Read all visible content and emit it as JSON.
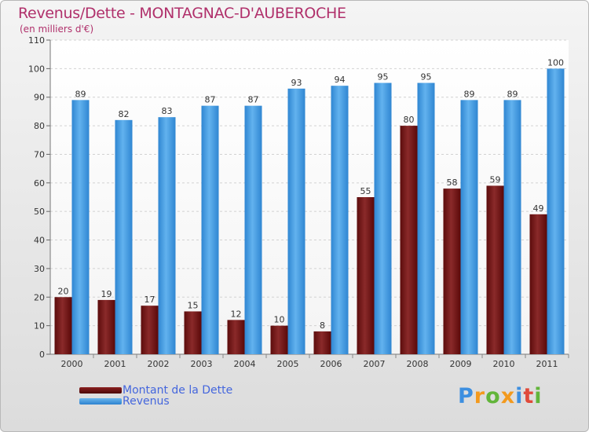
{
  "header": {
    "title": "Revenus/Dette - MONTAGNAC-D'AUBEROCHE",
    "subtitle": "(en milliers d'€)"
  },
  "chart_data": {
    "type": "bar",
    "title": "Revenus/Dette - MONTAGNAC-D'AUBEROCHE",
    "ylabel": "(en milliers d'€)",
    "xlabel": "",
    "ylim": [
      0,
      110
    ],
    "yticks": [
      0,
      10,
      20,
      30,
      40,
      50,
      60,
      70,
      80,
      90,
      100,
      110
    ],
    "grid": true,
    "legend_position": "bottom-left",
    "categories": [
      "2000",
      "2001",
      "2002",
      "2003",
      "2004",
      "2005",
      "2006",
      "2007",
      "2008",
      "2009",
      "2010",
      "2011"
    ],
    "series": [
      {
        "name": "Montant de la Dette",
        "color": "#7a1a1a",
        "values": [
          20,
          19,
          17,
          15,
          12,
          10,
          8,
          55,
          80,
          58,
          59,
          49
        ]
      },
      {
        "name": "Revenus",
        "color": "#3d96e0",
        "values": [
          89,
          82,
          83,
          87,
          87,
          93,
          94,
          95,
          95,
          89,
          89,
          100
        ]
      }
    ]
  },
  "legend": {
    "items": [
      {
        "label": "Montant de la Dette",
        "color": "#6b0d0d"
      },
      {
        "label": "Revenus",
        "color": "#3d96e0"
      }
    ]
  },
  "logo": {
    "letters": [
      "P",
      "r",
      "o",
      "x",
      "i",
      "t",
      "i"
    ],
    "colors": [
      "#3d8fe0",
      "#f39a1e",
      "#62b53a",
      "#f39a1e",
      "#3d8fe0",
      "#e04a3a",
      "#62b53a"
    ]
  }
}
